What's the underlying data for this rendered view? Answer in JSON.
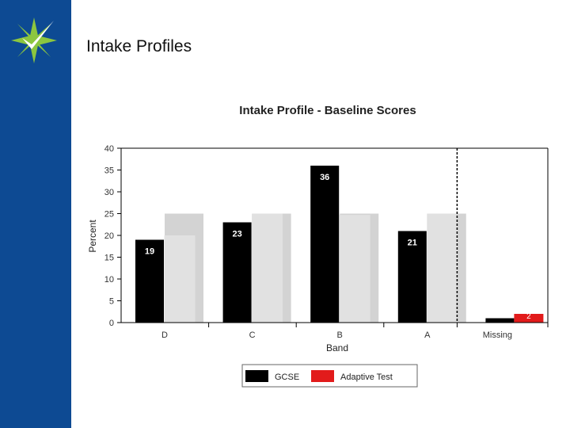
{
  "slide": {
    "title": "Intake Profiles"
  },
  "logo": {
    "icon": "star-check-logo-icon"
  },
  "colors": {
    "sidebar": "#0d4a93",
    "logo_green": "#8cc63f",
    "gcse": "#000000",
    "adaptive": "#e21b1b",
    "background_band": "#d3d3d3",
    "reference_bar": "#e1e1e1"
  },
  "chart_data": {
    "type": "bar",
    "title": "Intake Profile - Baseline Scores",
    "xlabel": "Band",
    "ylabel": "Percent",
    "ylim": [
      0,
      40
    ],
    "yticks": [
      0,
      5,
      10,
      15,
      20,
      25,
      30,
      35,
      40
    ],
    "categories": [
      "D",
      "C",
      "B",
      "A",
      "Missing"
    ],
    "series": [
      {
        "name": "GCSE",
        "values": [
          19,
          23,
          36,
          21,
          1
        ],
        "labels": [
          "19",
          "23",
          "36",
          "21",
          ""
        ]
      },
      {
        "name": "Adaptive Test",
        "values": [
          null,
          null,
          null,
          null,
          2
        ],
        "labels": [
          "",
          "",
          "",
          "",
          "2"
        ]
      }
    ],
    "background_bands": [
      25,
      25,
      25,
      25
    ],
    "reference_values": [
      20,
      25,
      24.7,
      25
    ],
    "legend": [
      "GCSE",
      "Adaptive Test"
    ],
    "legend_position": "bottom"
  }
}
